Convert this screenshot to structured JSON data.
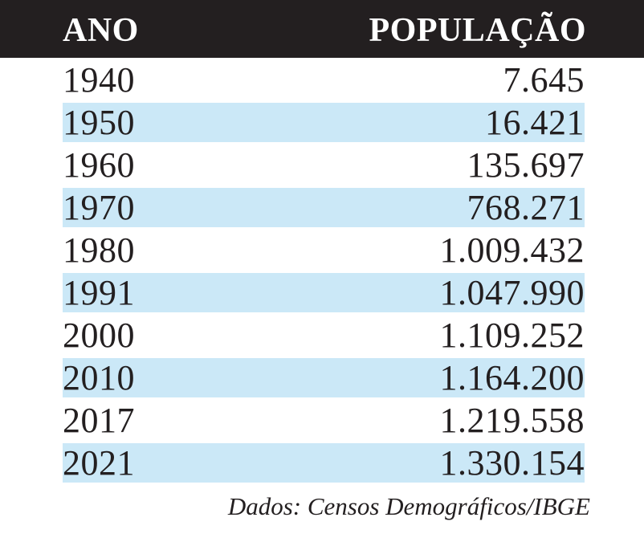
{
  "table": {
    "columns": [
      "ANO",
      "POPULAÇÃO"
    ],
    "rows": [
      {
        "ano": "1940",
        "populacao": "7.645"
      },
      {
        "ano": "1950",
        "populacao": "16.421"
      },
      {
        "ano": "1960",
        "populacao": "135.697"
      },
      {
        "ano": "1970",
        "populacao": "768.271"
      },
      {
        "ano": "1980",
        "populacao": "1.009.432"
      },
      {
        "ano": "1991",
        "populacao": "1.047.990"
      },
      {
        "ano": "2000",
        "populacao": "1.109.252"
      },
      {
        "ano": "2010",
        "populacao": "1.164.200"
      },
      {
        "ano": "2017",
        "populacao": "1.219.558"
      },
      {
        "ano": "2021",
        "populacao": "1.330.154"
      }
    ],
    "source_note": "Dados: Censos Demográficos/IBGE"
  },
  "colors": {
    "header_bg": "#231f20",
    "header_text": "#ffffff",
    "stripe": "#cbe8f7",
    "body_text": "#231f20"
  },
  "chart_data": {
    "type": "table",
    "title": "",
    "columns": [
      "ANO",
      "POPULAÇÃO"
    ],
    "categories": [
      "1940",
      "1950",
      "1960",
      "1970",
      "1980",
      "1991",
      "2000",
      "2010",
      "2017",
      "2021"
    ],
    "values": [
      7645,
      16421,
      135697,
      768271,
      1009432,
      1047990,
      1109252,
      1164200,
      1219558,
      1330154
    ],
    "xlabel": "ANO",
    "ylabel": "POPULAÇÃO",
    "source": "Dados: Censos Demográficos/IBGE",
    "layout": "striped-rows, years left-aligned, populations right-aligned"
  }
}
